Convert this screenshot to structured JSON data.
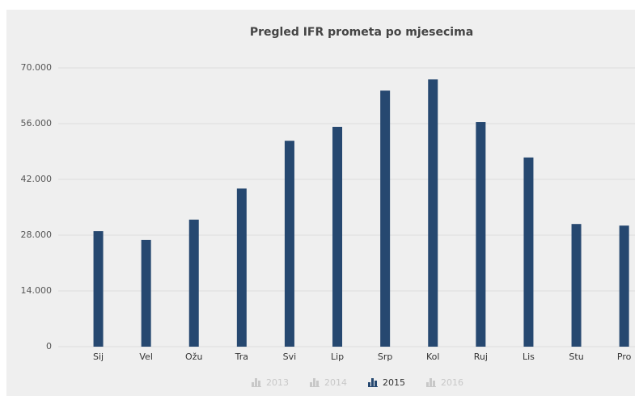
{
  "chart_data": {
    "type": "bar",
    "title": "Pregled IFR prometa po mjesecima",
    "categories": [
      "Sij",
      "Vel",
      "Ožu",
      "Tra",
      "Svi",
      "Lip",
      "Srp",
      "Kol",
      "Ruj",
      "Lis",
      "Stu",
      "Pro"
    ],
    "series": [
      {
        "name": "2013",
        "visible": false
      },
      {
        "name": "2014",
        "visible": false
      },
      {
        "name": "2015",
        "visible": true,
        "color": "#264870",
        "values": [
          29000,
          26800,
          31900,
          39700,
          51700,
          55200,
          64300,
          67100,
          56400,
          47500,
          30800,
          30400
        ]
      },
      {
        "name": "2016",
        "visible": false
      }
    ],
    "ylim": [
      0,
      70000
    ],
    "yticks": [
      0,
      {
        "value": 14000,
        "label": "14.000"
      },
      {
        "value": 28000,
        "label": "28.000"
      },
      {
        "value": 42000,
        "label": "42.000"
      },
      {
        "value": 56000,
        "label": "56.000"
      },
      {
        "value": 70000,
        "label": "70.000"
      }
    ],
    "grid": true
  }
}
